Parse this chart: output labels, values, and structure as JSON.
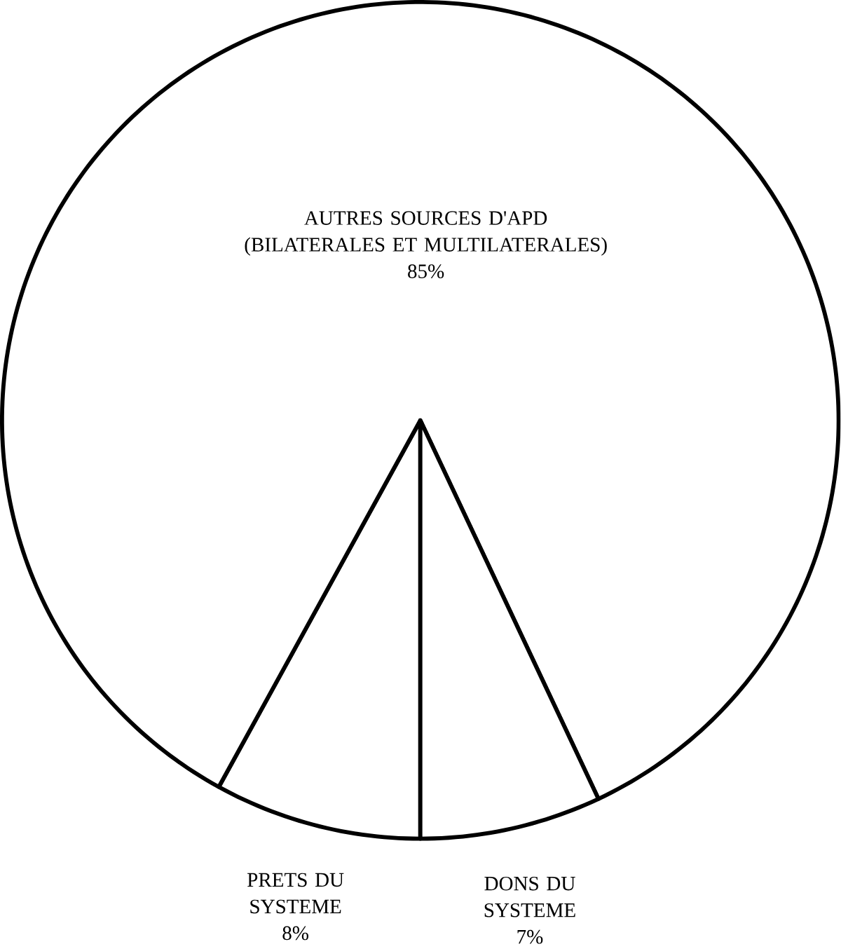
{
  "chart_data": {
    "type": "pie",
    "categories": [
      "PRETS DU SYSTEME",
      "AUTRES SOURCES D'APD (BILATERALES ET MULTILATERALES)",
      "DONS DU SYSTEME"
    ],
    "values": [
      8,
      85,
      7
    ],
    "value_labels": [
      "8%",
      "85%",
      "7%"
    ],
    "colors": [
      "#ffffff",
      "#ffffff",
      "#ffffff"
    ]
  }
}
